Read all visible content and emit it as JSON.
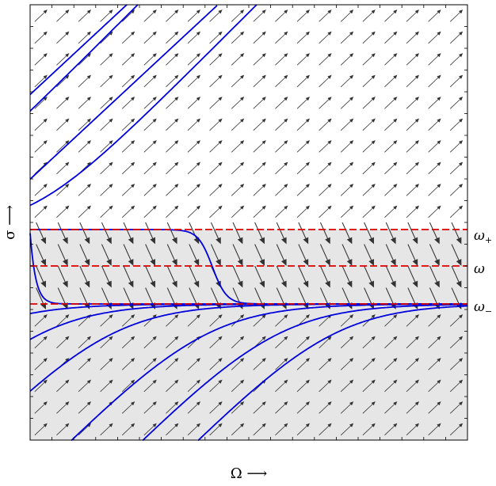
{
  "diagram": {
    "levels": [
      {
        "id": "omega_plus",
        "symbol": "ω",
        "sub": "+",
        "sigma": 0.47
      },
      {
        "id": "omega",
        "symbol": "ω",
        "sub": "",
        "sigma": 0.39
      },
      {
        "id": "omega_minus",
        "symbol": "ω",
        "sub": "−",
        "sigma": 0.31
      }
    ],
    "shaded_band": "below ω+",
    "x_axis_label": "Ω ⟶",
    "y_axis_label": "σ ⟶",
    "colors": {
      "curve": "#0000dd",
      "dashed": "#dd0000",
      "arrow": "#333333",
      "band": "#e6e6e6",
      "frame": "#000000"
    }
  }
}
